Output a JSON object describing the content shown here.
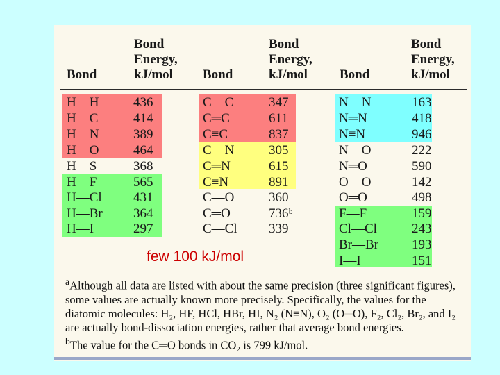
{
  "headers": {
    "bond": "Bond",
    "energy_line1": "Bond",
    "energy_line2": "Energy,",
    "energy_line3": "kJ/mol"
  },
  "colors": {
    "red": "#fc7f7f",
    "green": "#7fff7f",
    "yellow": "#ffff7f",
    "cyan": "#7fffff",
    "annotation": "#cc0000",
    "background": "#ccffff"
  },
  "columns": [
    {
      "rows": [
        {
          "bond": "H—H",
          "energy": "436"
        },
        {
          "bond": "H—C",
          "energy": "414"
        },
        {
          "bond": "H—N",
          "energy": "389"
        },
        {
          "bond": "H—O",
          "energy": "464"
        },
        {
          "bond": "H—S",
          "energy": "368"
        },
        {
          "bond": "H—F",
          "energy": "565"
        },
        {
          "bond": "H—Cl",
          "energy": "431"
        },
        {
          "bond": "H—Br",
          "energy": "364"
        },
        {
          "bond": "H—I",
          "energy": "297"
        }
      ]
    },
    {
      "rows": [
        {
          "bond": "C—C",
          "energy": "347"
        },
        {
          "bond": "C═C",
          "energy": "611"
        },
        {
          "bond": "C≡C",
          "energy": "837"
        },
        {
          "bond": "C—N",
          "energy": "305"
        },
        {
          "bond": "C═N",
          "energy": "615"
        },
        {
          "bond": "C≡N",
          "energy": "891"
        },
        {
          "bond": "C—O",
          "energy": "360"
        },
        {
          "bond": "C═O",
          "energy": "736ᵇ"
        },
        {
          "bond": "C—Cl",
          "energy": "339"
        }
      ]
    },
    {
      "rows": [
        {
          "bond": "N—N",
          "energy": "163"
        },
        {
          "bond": "N═N",
          "energy": "418"
        },
        {
          "bond": "N≡N",
          "energy": "946"
        },
        {
          "bond": "N—O",
          "energy": "222"
        },
        {
          "bond": "N═O",
          "energy": "590"
        },
        {
          "bond": "O—O",
          "energy": "142"
        },
        {
          "bond": "O═O",
          "energy": "498"
        },
        {
          "bond": "F—F",
          "energy": "159"
        },
        {
          "bond": "Cl—Cl",
          "energy": "243"
        },
        {
          "bond": "Br—Br",
          "energy": "193"
        },
        {
          "bond": "I—I",
          "energy": "151"
        }
      ]
    }
  ],
  "annotation": "few 100 kJ/mol",
  "footnotes": {
    "a_mark": "a",
    "a_text": "Although all data are listed with about the same precision (three significant figures), some values are actually known more precisely. Specifically, the values for the diatomic molecules: H₂, HF, HCl, HBr, HI, N₂ (N≡N), O₂ (O═O), F₂, Cl₂, Br₂, and I₂ are actually bond-dissociation energies, rather that average bond energies.",
    "b_mark": "b",
    "b_text": "The value for the C═O bonds in CO₂ is 799 kJ/mol."
  }
}
